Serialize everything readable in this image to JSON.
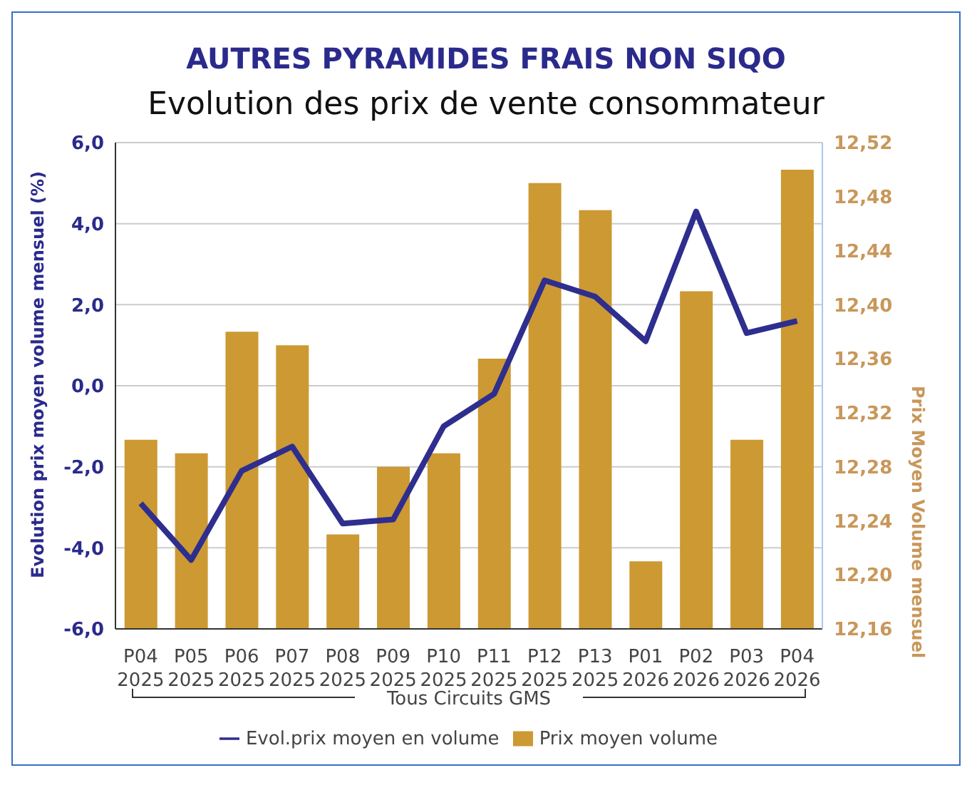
{
  "chart_data": {
    "type": "bar",
    "title": "AUTRES PYRAMIDES FRAIS NON SIQO",
    "subtitle": "Evolution des prix de vente consommateur",
    "xlabel": "Tous Circuits GMS",
    "ylabel": "Evolution prix moyen volume mensuel (%)",
    "y2label": "Prix Moyen Volume mensuel",
    "categories": [
      "P04\n2025",
      "P05\n2025",
      "P06\n2025",
      "P07\n2025",
      "P08\n2025",
      "P09\n2025",
      "P10\n2025",
      "P11\n2025",
      "P12\n2025",
      "P13\n2025",
      "P01\n2026",
      "P02\n2026",
      "P03\n2026",
      "P04\n2026"
    ],
    "series": [
      {
        "name": "Evol.prix moyen en volume",
        "type": "line",
        "color": "#2e2e8f",
        "values": [
          -2.9,
          -4.3,
          -2.1,
          -1.5,
          -3.4,
          -3.3,
          -1.0,
          -0.2,
          2.6,
          2.2,
          1.1,
          4.3,
          1.3,
          1.6
        ]
      },
      {
        "name": "Prix moyen volume",
        "axis": "y2",
        "color": "#cc9933",
        "values": [
          12.3,
          12.29,
          12.38,
          12.37,
          12.23,
          12.28,
          12.29,
          12.36,
          12.49,
          12.47,
          12.21,
          12.41,
          12.3,
          12.5
        ]
      }
    ],
    "ylim": [
      -6,
      6
    ],
    "yticks": [
      {
        "value": -6,
        "label": "-6,0"
      },
      {
        "value": -4,
        "label": "-4,0"
      },
      {
        "value": -2,
        "label": "-2,0"
      },
      {
        "value": 0,
        "label": "0,0"
      },
      {
        "value": 2,
        "label": "2,0"
      },
      {
        "value": 4,
        "label": "4,0"
      },
      {
        "value": 6,
        "label": "6,0"
      }
    ],
    "y2lim": [
      12.16,
      12.52
    ],
    "y2ticks": [
      {
        "value": 12.16,
        "label": "12,16"
      },
      {
        "value": 12.2,
        "label": "12,20"
      },
      {
        "value": 12.24,
        "label": "12,24"
      },
      {
        "value": 12.28,
        "label": "12,28"
      },
      {
        "value": 12.32,
        "label": "12,32"
      },
      {
        "value": 12.36,
        "label": "12,36"
      },
      {
        "value": 12.4,
        "label": "12,40"
      },
      {
        "value": 12.44,
        "label": "12,44"
      },
      {
        "value": 12.48,
        "label": "12,48"
      },
      {
        "value": 12.52,
        "label": "12,52"
      }
    ],
    "grid": "y",
    "legend": "bottom",
    "marker": "none",
    "line_style": "solid"
  }
}
